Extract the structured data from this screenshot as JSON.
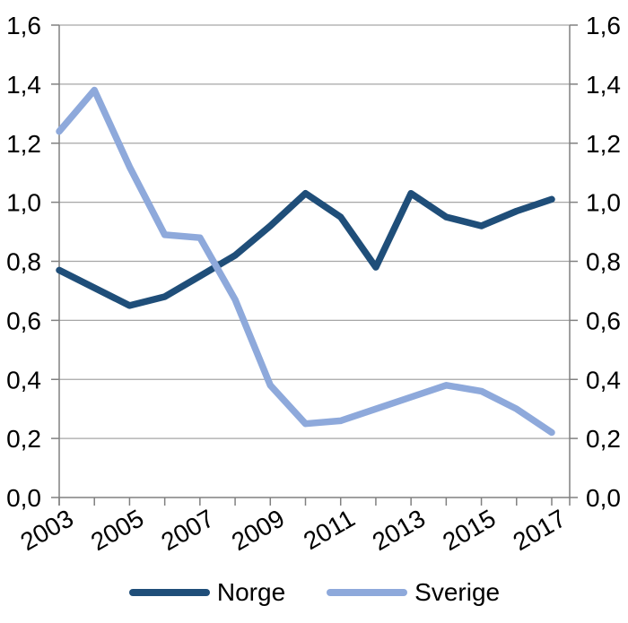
{
  "chart_data": {
    "type": "line",
    "title": "",
    "xlabel": "",
    "ylabel": "",
    "categories": [
      2003,
      2004,
      2005,
      2006,
      2007,
      2008,
      2009,
      2010,
      2011,
      2012,
      2013,
      2014,
      2015,
      2016,
      2017
    ],
    "series": [
      {
        "name": "Norge",
        "color": "#1F4E79",
        "values": [
          0.77,
          0.71,
          0.65,
          0.68,
          0.75,
          0.82,
          0.92,
          1.03,
          0.95,
          0.78,
          1.03,
          0.95,
          0.92,
          0.97,
          1.01
        ]
      },
      {
        "name": "Sverige",
        "color": "#8EA9DB",
        "values": [
          1.24,
          1.38,
          1.12,
          0.89,
          0.88,
          0.67,
          0.38,
          0.25,
          0.26,
          0.3,
          0.34,
          0.38,
          0.36,
          0.3,
          0.22
        ]
      }
    ],
    "ylim": [
      0,
      1.6
    ],
    "ytick_step": 0.2,
    "ytick_labels": [
      "0,0",
      "0,2",
      "0,4",
      "0,6",
      "0,8",
      "1,0",
      "1,2",
      "1,4",
      "1,6"
    ],
    "xtick_labels": [
      "2003",
      "2005",
      "2007",
      "2009",
      "2011",
      "2013",
      "2015",
      "2017"
    ],
    "grid": true,
    "dual_y_axis": true,
    "legend_position": "bottom",
    "style": {
      "gridline_color": "#A6A6A6",
      "axis_color": "#808080",
      "text_color": "#000000",
      "background": "#FFFFFF"
    }
  }
}
